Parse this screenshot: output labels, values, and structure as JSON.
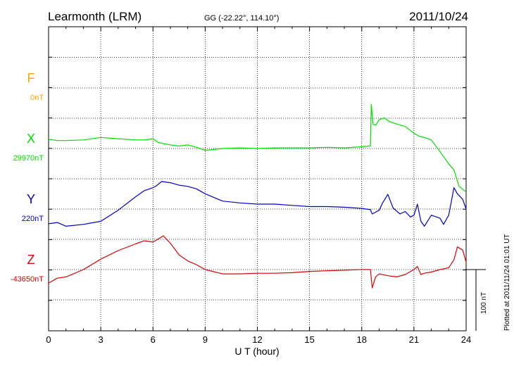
{
  "header": {
    "station": "Learmonth (LRM)",
    "coords": "GG (-22.22°, 114.10°)",
    "date": "2011/10/24"
  },
  "footer": {
    "plotted": "Plotted at 2011/11/24 01:01 UT",
    "scale_label": "100 nT"
  },
  "colors": {
    "F": "#ffa500",
    "X": "#00dd00",
    "Y": "#0000cc",
    "Z": "#dd0000"
  },
  "chart_data": {
    "type": "line",
    "title": "Learmonth (LRM)",
    "xlabel": "U T (hour)",
    "ylabel": "",
    "xlim": [
      0,
      24
    ],
    "x_ticks": [
      0,
      3,
      6,
      9,
      12,
      15,
      18,
      21,
      24
    ],
    "grid": true,
    "scale_nT": 100,
    "channels": [
      {
        "name": "F",
        "baseline_label": "0nT",
        "has_data": false
      },
      {
        "name": "X",
        "baseline_label": "29970nT",
        "has_data": true
      },
      {
        "name": "Y",
        "baseline_label": "220nT",
        "has_data": true
      },
      {
        "name": "Z",
        "baseline_label": "-43650nT",
        "has_data": true
      }
    ],
    "series": [
      {
        "name": "X",
        "x": [
          0,
          0.5,
          1,
          2,
          3,
          4,
          5,
          5.5,
          6,
          6.3,
          6.6,
          7,
          7.5,
          8,
          8.5,
          9,
          10,
          11,
          12,
          13,
          14,
          15,
          16,
          17,
          18,
          18.5,
          18.55,
          18.65,
          18.8,
          19,
          19.3,
          19.6,
          20,
          20.5,
          21,
          21.3,
          21.6,
          22,
          22.5,
          23,
          23.3,
          23.6,
          24
        ],
        "values": [
          15,
          13,
          13,
          14,
          18,
          16,
          14,
          14,
          16,
          10,
          8,
          6,
          4,
          6,
          2,
          -3,
          0,
          1,
          0,
          1,
          1,
          1,
          2,
          1,
          3,
          4,
          72,
          40,
          38,
          47,
          50,
          44,
          40,
          36,
          25,
          20,
          18,
          14,
          -5,
          -25,
          -35,
          -62,
          -71
        ]
      },
      {
        "name": "Y",
        "x": [
          0,
          0.5,
          1,
          2,
          3,
          4,
          5,
          5.5,
          6,
          6.2,
          6.5,
          7,
          7.5,
          8,
          8.5,
          9,
          10,
          11,
          12,
          13,
          14,
          15,
          16,
          17,
          18,
          18.5,
          18.6,
          19,
          19.2,
          19.5,
          19.8,
          20.2,
          20.5,
          20.8,
          21,
          21.2,
          21.4,
          21.6,
          22,
          22.5,
          22.7,
          23,
          23.3,
          23.5,
          23.8,
          24
        ],
        "values": [
          -24,
          -22,
          -28,
          -25,
          -20,
          -2,
          20,
          30,
          35,
          38,
          45,
          43,
          39,
          37,
          33,
          25,
          13,
          10,
          8,
          8,
          6,
          4,
          4,
          3,
          1,
          -1,
          -8,
          -2,
          10,
          24,
          2,
          -8,
          -4,
          -13,
          -10,
          8,
          -20,
          -28,
          -10,
          -15,
          -25,
          -10,
          35,
          25,
          16,
          0
        ]
      },
      {
        "name": "Z",
        "x": [
          0,
          0.5,
          1,
          2,
          3,
          4,
          5,
          5.5,
          6,
          6.3,
          6.6,
          7,
          7.5,
          8,
          8.5,
          9,
          10,
          11,
          12,
          13,
          14,
          15,
          16,
          17,
          18,
          18.5,
          18.6,
          18.8,
          19,
          19.5,
          20,
          20.5,
          21,
          21.2,
          21.4,
          21.6,
          22,
          22.5,
          23,
          23.3,
          23.5,
          23.8,
          24
        ],
        "values": [
          -22,
          -14,
          -12,
          0,
          17,
          31,
          42,
          47,
          45,
          50,
          55,
          43,
          24,
          14,
          8,
          0,
          -7,
          -7,
          -6,
          -6,
          -5,
          -3,
          -2,
          -1,
          0,
          0,
          -30,
          -12,
          -7,
          -10,
          -12,
          -8,
          0,
          5,
          -8,
          -6,
          -4,
          0,
          3,
          16,
          37,
          32,
          12
        ]
      }
    ]
  }
}
